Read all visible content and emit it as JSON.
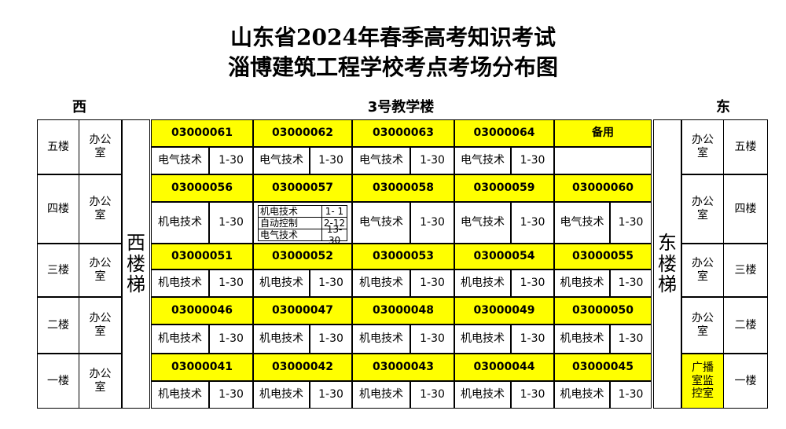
{
  "title_lines": [
    "山东省2024年春季高考知识考试",
    "淄博建筑工程学校考点考场分布图"
  ],
  "header": {
    "west": "西",
    "building": "3号教学楼",
    "east": "东"
  },
  "stairs": {
    "west": "西楼梯",
    "east": "东楼梯"
  },
  "floors": [
    {
      "name": "五楼",
      "left_office": "办公室",
      "right_office": {
        "text": "办公室",
        "highlight": false
      },
      "rooms": [
        {
          "code": "03000061",
          "entries": [
            {
              "subject": "电气技术",
              "range": "1-30"
            }
          ]
        },
        {
          "code": "03000062",
          "entries": [
            {
              "subject": "电气技术",
              "range": "1-30"
            }
          ]
        },
        {
          "code": "03000063",
          "entries": [
            {
              "subject": "电气技术",
              "range": "1-30"
            }
          ]
        },
        {
          "code": "03000064",
          "entries": [
            {
              "subject": "电气技术",
              "range": "1-30"
            }
          ]
        },
        {
          "code": "备用",
          "entries": []
        }
      ]
    },
    {
      "name": "四楼",
      "left_office": "办公室",
      "right_office": {
        "text": "办公室",
        "highlight": false
      },
      "rooms": [
        {
          "code": "03000056",
          "entries": [
            {
              "subject": "机电技术",
              "range": "1-30"
            }
          ]
        },
        {
          "code": "03000057",
          "entries": [
            {
              "subject": "机电技术",
              "range": "1- 1"
            },
            {
              "subject": "自动控制",
              "range": "2-12"
            },
            {
              "subject": "电气技术",
              "range": "13-30"
            }
          ]
        },
        {
          "code": "03000058",
          "entries": [
            {
              "subject": "电气技术",
              "range": "1-30"
            }
          ]
        },
        {
          "code": "03000059",
          "entries": [
            {
              "subject": "电气技术",
              "range": "1-30"
            }
          ]
        },
        {
          "code": "03000060",
          "entries": [
            {
              "subject": "电气技术",
              "range": "1-30"
            }
          ]
        }
      ]
    },
    {
      "name": "三楼",
      "left_office": "办公室",
      "right_office": {
        "text": "办公室",
        "highlight": false
      },
      "rooms": [
        {
          "code": "03000051",
          "entries": [
            {
              "subject": "机电技术",
              "range": "1-30"
            }
          ]
        },
        {
          "code": "03000052",
          "entries": [
            {
              "subject": "机电技术",
              "range": "1-30"
            }
          ]
        },
        {
          "code": "03000053",
          "entries": [
            {
              "subject": "机电技术",
              "range": "1-30"
            }
          ]
        },
        {
          "code": "03000054",
          "entries": [
            {
              "subject": "机电技术",
              "range": "1-30"
            }
          ]
        },
        {
          "code": "03000055",
          "entries": [
            {
              "subject": "机电技术",
              "range": "1-30"
            }
          ]
        }
      ]
    },
    {
      "name": "二楼",
      "left_office": "办公室",
      "right_office": {
        "text": "办公室",
        "highlight": false
      },
      "rooms": [
        {
          "code": "03000046",
          "entries": [
            {
              "subject": "机电技术",
              "range": "1-30"
            }
          ]
        },
        {
          "code": "03000047",
          "entries": [
            {
              "subject": "机电技术",
              "range": "1-30"
            }
          ]
        },
        {
          "code": "03000048",
          "entries": [
            {
              "subject": "机电技术",
              "range": "1-30"
            }
          ]
        },
        {
          "code": "03000049",
          "entries": [
            {
              "subject": "机电技术",
              "range": "1-30"
            }
          ]
        },
        {
          "code": "03000050",
          "entries": [
            {
              "subject": "机电技术",
              "range": "1-30"
            }
          ]
        }
      ]
    },
    {
      "name": "一楼",
      "left_office": "办公室",
      "right_office": {
        "text": "广播室监控室",
        "highlight": true
      },
      "rooms": [
        {
          "code": "03000041",
          "entries": [
            {
              "subject": "机电技术",
              "range": "1-30"
            }
          ]
        },
        {
          "code": "03000042",
          "entries": [
            {
              "subject": "机电技术",
              "range": "1-30"
            }
          ]
        },
        {
          "code": "03000043",
          "entries": [
            {
              "subject": "机电技术",
              "range": "1-30"
            }
          ]
        },
        {
          "code": "03000044",
          "entries": [
            {
              "subject": "机电技术",
              "range": "1-30"
            }
          ]
        },
        {
          "code": "03000045",
          "entries": [
            {
              "subject": "机电技术",
              "range": "1-30"
            }
          ]
        }
      ]
    }
  ]
}
